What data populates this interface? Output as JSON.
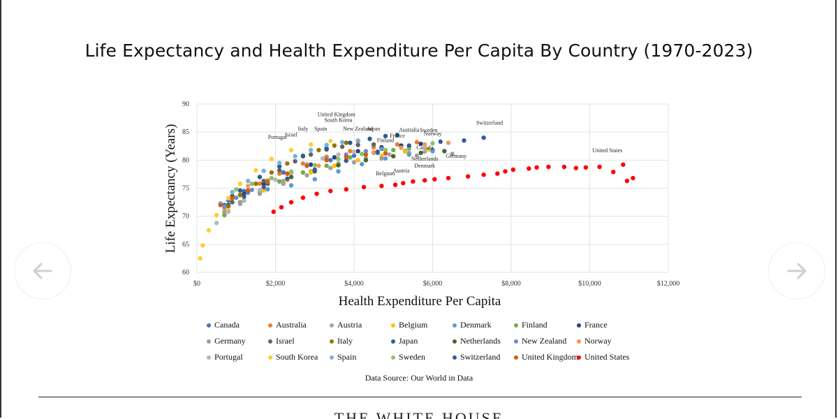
{
  "page": {
    "source_note": "Data Source: Our World in Data",
    "footer_text": "THE WHITE HOUSE"
  },
  "nav": {
    "left_icon": "arrow-left-icon",
    "right_icon": "arrow-right-icon"
  },
  "chart_data": {
    "type": "scatter",
    "title": "Life Expectancy and Health Expenditure Per Capita By Country (1970-2023)",
    "xlabel": "Health Expenditure Per Capita",
    "ylabel": "Life Expectancy (Years)",
    "xlim": [
      0,
      12000
    ],
    "ylim": [
      60,
      90
    ],
    "x_ticks": [
      0,
      2000,
      4000,
      6000,
      8000,
      10000,
      12000
    ],
    "x_tick_labels": [
      "$0",
      "$2,000",
      "$4,000",
      "$6,000",
      "$8,000",
      "$10,000",
      "$12,000"
    ],
    "y_ticks": [
      60,
      65,
      70,
      75,
      80,
      85,
      90
    ],
    "y_tick_labels": [
      "60",
      "65",
      "70",
      "75",
      "80",
      "85",
      "90"
    ],
    "grid": true,
    "legend_position": "bottom",
    "series": [
      {
        "name": "Canada",
        "color": "#4472c4",
        "points": [
          [
            800,
            72.8
          ],
          [
            1200,
            74.5
          ],
          [
            1700,
            76.2
          ],
          [
            2200,
            77.8
          ],
          [
            2800,
            79.0
          ],
          [
            3400,
            80.0
          ],
          [
            4000,
            80.8
          ],
          [
            4600,
            81.3
          ],
          [
            5300,
            81.6
          ],
          [
            6000,
            81.8
          ]
        ],
        "label": {
          "text": "Canada",
          "x": 5800,
          "y": 81.9
        }
      },
      {
        "name": "Australia",
        "color": "#ed7d31",
        "points": [
          [
            700,
            71.5
          ],
          [
            1100,
            73.8
          ],
          [
            1600,
            75.8
          ],
          [
            2100,
            77.6
          ],
          [
            2700,
            79.4
          ],
          [
            3300,
            80.6
          ],
          [
            3900,
            81.6
          ],
          [
            4500,
            82.3
          ],
          [
            5100,
            82.8
          ],
          [
            5600,
            83.2
          ]
        ],
        "label": {
          "text": "Australia",
          "x": 5400,
          "y": 85.1
        }
      },
      {
        "name": "Austria",
        "color": "#a5a5a5",
        "points": [
          [
            700,
            70.3
          ],
          [
            1100,
            72.2
          ],
          [
            1600,
            74.3
          ],
          [
            2200,
            76.3
          ],
          [
            2900,
            78.0
          ],
          [
            3600,
            79.4
          ],
          [
            4300,
            80.4
          ],
          [
            4900,
            81.0
          ],
          [
            5400,
            81.3
          ],
          [
            5800,
            81.5
          ]
        ],
        "label": {
          "text": "Austria",
          "x": 5200,
          "y": 77.8
        }
      },
      {
        "name": "Belgium",
        "color": "#ffc000",
        "points": [
          [
            800,
            71.0
          ],
          [
            1200,
            72.8
          ],
          [
            1700,
            74.6
          ],
          [
            2300,
            76.4
          ],
          [
            2900,
            77.8
          ],
          [
            3500,
            79.0
          ],
          [
            4100,
            80.0
          ],
          [
            4700,
            80.8
          ],
          [
            5300,
            81.5
          ],
          [
            5900,
            81.9
          ]
        ],
        "label": {
          "text": "Belgium",
          "x": 4800,
          "y": 77.3
        }
      },
      {
        "name": "Denmark",
        "color": "#5b9bd5",
        "points": [
          [
            900,
            73.3
          ],
          [
            1300,
            74.2
          ],
          [
            1800,
            74.8
          ],
          [
            2400,
            75.5
          ],
          [
            3000,
            76.6
          ],
          [
            3600,
            78.0
          ],
          [
            4200,
            79.3
          ],
          [
            4800,
            80.3
          ],
          [
            5400,
            81.0
          ],
          [
            6000,
            81.6
          ]
        ],
        "label": {
          "text": "Denmark",
          "x": 5800,
          "y": 78.7
        }
      },
      {
        "name": "Finland",
        "color": "#70ad47",
        "points": [
          [
            700,
            70.2
          ],
          [
            1100,
            72.5
          ],
          [
            1600,
            74.5
          ],
          [
            2100,
            76.2
          ],
          [
            2700,
            77.8
          ],
          [
            3300,
            79.0
          ],
          [
            3900,
            80.5
          ],
          [
            4500,
            81.3
          ],
          [
            5000,
            81.8
          ],
          [
            5400,
            82.1
          ]
        ],
        "label": {
          "text": "Finland",
          "x": 4800,
          "y": 83.2
        }
      },
      {
        "name": "France",
        "color": "#264478",
        "points": [
          [
            800,
            72.0
          ],
          [
            1200,
            74.0
          ],
          [
            1700,
            75.8
          ],
          [
            2300,
            77.6
          ],
          [
            2900,
            79.2
          ],
          [
            3500,
            80.5
          ],
          [
            4100,
            81.6
          ],
          [
            4700,
            82.3
          ],
          [
            5200,
            82.6
          ],
          [
            5700,
            82.9
          ]
        ],
        "label": {
          "text": "France",
          "x": 5100,
          "y": 84.0
        }
      },
      {
        "name": "Germany",
        "color": "#9e9e9e",
        "points": [
          [
            700,
            70.8
          ],
          [
            1100,
            72.3
          ],
          [
            1600,
            74.0
          ],
          [
            2200,
            75.8
          ],
          [
            2800,
            77.3
          ],
          [
            3400,
            78.6
          ],
          [
            4000,
            79.6
          ],
          [
            4700,
            80.3
          ],
          [
            5600,
            80.8
          ],
          [
            6500,
            81.1
          ]
        ],
        "label": {
          "text": "Germany",
          "x": 6600,
          "y": 80.4
        }
      },
      {
        "name": "Israel",
        "color": "#636363",
        "points": [
          [
            900,
            72.5
          ],
          [
            1300,
            74.5
          ],
          [
            1700,
            76.3
          ],
          [
            2100,
            78.2
          ],
          [
            2500,
            79.8
          ],
          [
            2900,
            81.0
          ],
          [
            3300,
            81.9
          ],
          [
            3700,
            82.4
          ],
          [
            4100,
            82.7
          ],
          [
            4500,
            82.8
          ]
        ],
        "label": {
          "text": "Israel",
          "x": 2400,
          "y": 84.2
        }
      },
      {
        "name": "Italy",
        "color": "#997300",
        "points": [
          [
            800,
            71.8
          ],
          [
            1100,
            73.8
          ],
          [
            1500,
            75.8
          ],
          [
            1900,
            77.8
          ],
          [
            2300,
            79.4
          ],
          [
            2700,
            80.8
          ],
          [
            3100,
            81.8
          ],
          [
            3500,
            82.6
          ],
          [
            3800,
            83.1
          ],
          [
            4100,
            83.4
          ]
        ],
        "label": {
          "text": "Italy",
          "x": 2700,
          "y": 85.3
        }
      },
      {
        "name": "Japan",
        "color": "#255e91",
        "points": [
          [
            700,
            72.0
          ],
          [
            1100,
            74.6
          ],
          [
            1600,
            77.0
          ],
          [
            2100,
            78.9
          ],
          [
            2700,
            80.7
          ],
          [
            3300,
            82.1
          ],
          [
            3900,
            83.1
          ],
          [
            4400,
            83.8
          ],
          [
            4800,
            84.3
          ],
          [
            5100,
            84.5
          ]
        ],
        "label": {
          "text": "Japan",
          "x": 4500,
          "y": 85.3
        }
      },
      {
        "name": "Netherlands",
        "color": "#43682b",
        "points": [
          [
            900,
            73.6
          ],
          [
            1300,
            74.6
          ],
          [
            1800,
            75.8
          ],
          [
            2400,
            77.0
          ],
          [
            3000,
            78.0
          ],
          [
            3600,
            79.1
          ],
          [
            4300,
            80.0
          ],
          [
            5000,
            80.7
          ],
          [
            5700,
            81.3
          ],
          [
            6300,
            81.6
          ]
        ],
        "label": {
          "text": "Netherlands",
          "x": 5800,
          "y": 79.9
        }
      },
      {
        "name": "New Zealand",
        "color": "#698ed0",
        "points": [
          [
            700,
            71.8
          ],
          [
            1000,
            73.3
          ],
          [
            1400,
            74.7
          ],
          [
            1800,
            76.1
          ],
          [
            2300,
            77.6
          ],
          [
            2800,
            79.1
          ],
          [
            3300,
            80.2
          ],
          [
            3800,
            81.0
          ],
          [
            4300,
            81.6
          ],
          [
            4700,
            82.0
          ]
        ],
        "label": {
          "text": "New Zealand",
          "x": 4100,
          "y": 85.3
        }
      },
      {
        "name": "Norway",
        "color": "#f1975a",
        "points": [
          [
            900,
            74.3
          ],
          [
            1300,
            75.4
          ],
          [
            1800,
            76.4
          ],
          [
            2400,
            77.7
          ],
          [
            3100,
            79.0
          ],
          [
            3800,
            80.3
          ],
          [
            4500,
            81.4
          ],
          [
            5200,
            82.2
          ],
          [
            5800,
            82.8
          ],
          [
            6400,
            83.1
          ]
        ],
        "label": {
          "text": "Norway",
          "x": 6000,
          "y": 84.4
        }
      },
      {
        "name": "Portugal",
        "color": "#b7b7b7",
        "points": [
          [
            500,
            68.8
          ],
          [
            800,
            70.8
          ],
          [
            1200,
            72.8
          ],
          [
            1600,
            74.7
          ],
          [
            2000,
            76.5
          ],
          [
            2400,
            78.0
          ],
          [
            2800,
            79.3
          ],
          [
            3200,
            80.3
          ],
          [
            3600,
            81.0
          ],
          [
            4000,
            81.5
          ]
        ],
        "label": {
          "text": "Portugal",
          "x": 2050,
          "y": 83.8
        }
      },
      {
        "name": "South Korea",
        "color": "#ffcd33",
        "points": [
          [
            80,
            62.5
          ],
          [
            150,
            64.8
          ],
          [
            300,
            67.5
          ],
          [
            500,
            70.2
          ],
          [
            800,
            73.2
          ],
          [
            1100,
            75.8
          ],
          [
            1500,
            78.2
          ],
          [
            1900,
            80.2
          ],
          [
            2400,
            81.8
          ],
          [
            2900,
            82.8
          ],
          [
            3400,
            83.4
          ]
        ],
        "label": {
          "text": "South Korea",
          "x": 3600,
          "y": 86.8
        }
      },
      {
        "name": "Spain",
        "color": "#7cafdd",
        "points": [
          [
            600,
            72.3
          ],
          [
            900,
            74.3
          ],
          [
            1300,
            76.3
          ],
          [
            1700,
            78.1
          ],
          [
            2100,
            79.5
          ],
          [
            2500,
            80.7
          ],
          [
            2900,
            81.8
          ],
          [
            3300,
            82.7
          ],
          [
            3700,
            83.2
          ],
          [
            4100,
            83.5
          ]
        ],
        "label": {
          "text": "Spain",
          "x": 3150,
          "y": 85.3
        }
      },
      {
        "name": "Sweden",
        "color": "#8cc168",
        "points": [
          [
            1000,
            74.8
          ],
          [
            1400,
            75.8
          ],
          [
            1900,
            76.8
          ],
          [
            2400,
            77.9
          ],
          [
            3000,
            79.1
          ],
          [
            3600,
            80.2
          ],
          [
            4200,
            81.1
          ],
          [
            4800,
            81.8
          ],
          [
            5400,
            82.4
          ],
          [
            6000,
            83.0
          ]
        ],
        "label": {
          "text": "Sweden",
          "x": 5900,
          "y": 85.0
        }
      },
      {
        "name": "Switzerland",
        "color": "#335aa1",
        "points": [
          [
            1200,
            73.5
          ],
          [
            1700,
            75.2
          ],
          [
            2300,
            76.7
          ],
          [
            3000,
            78.3
          ],
          [
            3800,
            79.9
          ],
          [
            4600,
            81.5
          ],
          [
            5400,
            82.6
          ],
          [
            6200,
            83.3
          ],
          [
            6800,
            83.5
          ],
          [
            7300,
            84.0
          ]
        ],
        "label": {
          "text": "Switzerland",
          "x": 7450,
          "y": 86.3
        }
      },
      {
        "name": "United Kingdom",
        "color": "#d26012",
        "points": [
          [
            600,
            72.0
          ],
          [
            900,
            73.2
          ],
          [
            1300,
            74.6
          ],
          [
            1800,
            76.2
          ],
          [
            2300,
            77.6
          ],
          [
            2800,
            79.0
          ],
          [
            3300,
            80.0
          ],
          [
            3800,
            80.6
          ],
          [
            4300,
            81.0
          ],
          [
            4800,
            81.2
          ]
        ],
        "label": {
          "text": "United Kingdom",
          "x": 3550,
          "y": 87.8
        }
      },
      {
        "name": "United States",
        "color": "#ff0000",
        "points": [
          [
            1950,
            70.8
          ],
          [
            2150,
            71.6
          ],
          [
            2400,
            72.5
          ],
          [
            2700,
            73.3
          ],
          [
            3050,
            74.0
          ],
          [
            3400,
            74.5
          ],
          [
            3800,
            74.8
          ],
          [
            4250,
            75.2
          ],
          [
            4700,
            75.4
          ],
          [
            5050,
            75.6
          ],
          [
            5250,
            75.9
          ],
          [
            5500,
            76.2
          ],
          [
            5800,
            76.4
          ],
          [
            6050,
            76.6
          ],
          [
            6400,
            76.8
          ],
          [
            6900,
            77.1
          ],
          [
            7300,
            77.4
          ],
          [
            7650,
            77.6
          ],
          [
            7850,
            78.0
          ],
          [
            8050,
            78.3
          ],
          [
            8450,
            78.5
          ],
          [
            8650,
            78.7
          ],
          [
            8950,
            78.8
          ],
          [
            9350,
            78.8
          ],
          [
            9650,
            78.6
          ],
          [
            9900,
            78.7
          ],
          [
            10250,
            78.8
          ],
          [
            10600,
            77.9
          ],
          [
            10850,
            79.2
          ],
          [
            10950,
            76.3
          ],
          [
            11100,
            76.8
          ]
        ],
        "label": {
          "text": "United States",
          "x": 10450,
          "y": 81.4
        }
      }
    ]
  }
}
